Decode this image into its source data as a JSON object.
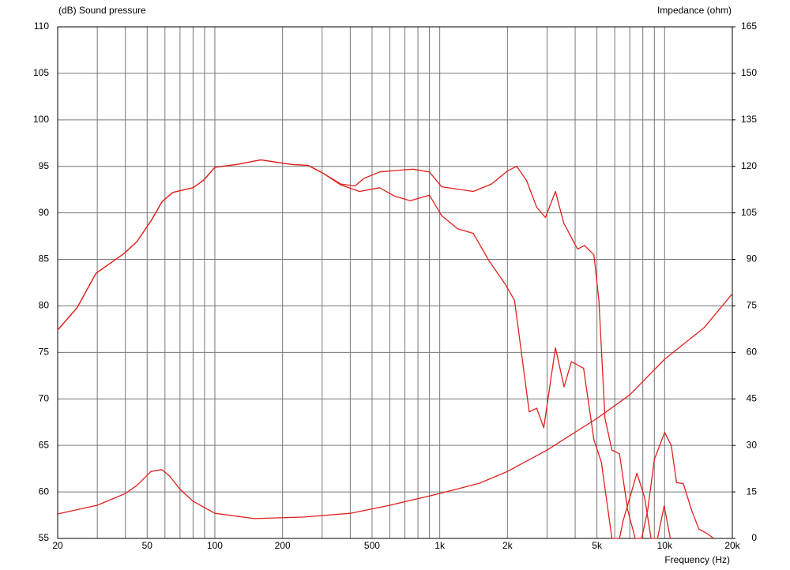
{
  "chart_data": {
    "type": "line",
    "y_label": "(dB)  Sound pressure",
    "y2_label": "Impedance  (ohm)",
    "x_label": "Frequency  (Hz)",
    "xlog": true,
    "xlim": [
      20,
      20000
    ],
    "xticks": [
      20,
      50,
      100,
      200,
      500,
      {
        "value": 1000,
        "label": "1k"
      },
      {
        "value": 2000,
        "label": "2k"
      },
      {
        "value": 5000,
        "label": "5k"
      },
      {
        "value": 10000,
        "label": "10k"
      },
      {
        "value": 20000,
        "label": "20k"
      }
    ],
    "xgrid": [
      30,
      40,
      60,
      70,
      80,
      90,
      300,
      400,
      600,
      700,
      800,
      900,
      3000,
      4000,
      6000,
      7000,
      8000,
      9000
    ],
    "ylim": [
      55,
      110
    ],
    "yticks": [
      55,
      60,
      65,
      70,
      75,
      80,
      85,
      90,
      95,
      100,
      105,
      110
    ],
    "y2lim": [
      0,
      165
    ],
    "y2ticks": [
      0,
      15,
      30,
      45,
      60,
      75,
      90,
      105,
      120,
      135,
      150,
      165
    ],
    "grid": true,
    "series": [
      {
        "color": "#e0201c",
        "x": [
          20,
          24.4,
          29.6,
          39.3,
          45,
          52.5,
          58.2,
          65,
          80,
          89,
          100,
          125,
          160,
          220,
          260,
          306,
          363,
          420,
          460,
          540,
          675,
          760,
          900,
          1020,
          1410,
          1700,
          2000,
          2200,
          2430,
          2700,
          2950,
          3270,
          3560,
          4100,
          4400,
          4850,
          5100,
          5430,
          5830,
          6300,
          6840,
          7400,
          7900,
          8400,
          9000,
          10000,
          10700,
          11300,
          12100,
          13200,
          14200,
          15500,
          16500
        ],
        "values": [
          77.4,
          79.8,
          83.5,
          85.6,
          86.9,
          89.3,
          91.2,
          92.2,
          92.7,
          93.5,
          94.9,
          95.2,
          95.7,
          95.2,
          95.1,
          94.2,
          93.1,
          92.9,
          93.7,
          94.4,
          94.6,
          94.7,
          94.4,
          92.8,
          92.3,
          93.1,
          94.5,
          95.0,
          93.5,
          90.6,
          89.5,
          92.3,
          88.9,
          86.1,
          86.5,
          85.5,
          80.6,
          67.9,
          64.5,
          64.1,
          58.1,
          55,
          55,
          58,
          63.5,
          66.4,
          65,
          61,
          60.9,
          58,
          56,
          55.5,
          55
        ]
      },
      {
        "color": "#e0201c",
        "x": [
          20,
          24.4,
          29.6,
          39.3,
          45,
          52.5,
          58.2,
          65,
          80,
          89,
          100,
          125,
          160,
          220,
          260,
          306,
          363,
          440,
          540,
          630,
          740,
          840,
          900,
          1020,
          1200,
          1410,
          1650,
          1960,
          2150,
          2500,
          2700,
          2900,
          3270,
          3570,
          3850,
          4360,
          4850,
          5230,
          5830,
          6300,
          6540,
          7530,
          8150,
          8700,
          9300,
          9950,
          10600
        ],
        "values": [
          77.4,
          79.8,
          83.5,
          85.6,
          86.9,
          89.3,
          91.2,
          92.2,
          92.7,
          93.5,
          94.9,
          95.2,
          95.7,
          95.2,
          95.1,
          94.2,
          93.0,
          92.3,
          92.7,
          91.8,
          91.3,
          91.7,
          91.9,
          89.7,
          88.3,
          87.8,
          84.9,
          82.3,
          80.6,
          68.6,
          69.0,
          66.9,
          75.5,
          71.3,
          74.0,
          73.3,
          65.6,
          63.2,
          55,
          55,
          56.9,
          62.0,
          59.4,
          55,
          55,
          58.5,
          55
        ]
      },
      {
        "color": "#e0201c",
        "axis": "y2",
        "x": [
          20,
          30,
          40,
          45,
          52,
          58,
          63,
          70,
          80,
          100,
          150,
          250,
          400,
          600,
          1000,
          1500,
          2000,
          3000,
          5000,
          7000,
          10000,
          15000,
          20000
        ],
        "values": [
          7.9,
          10.7,
          14.5,
          17.1,
          21.6,
          22.2,
          20.1,
          15.8,
          12.0,
          8.1,
          6.4,
          6.9,
          8.1,
          10.7,
          14.5,
          17.8,
          21.6,
          28.5,
          38.7,
          46.3,
          57.8,
          68.0,
          78.9
        ]
      }
    ]
  }
}
